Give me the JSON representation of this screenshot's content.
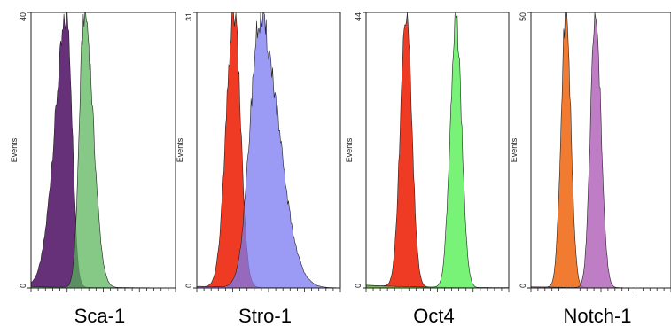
{
  "chart_data": [
    {
      "type": "area",
      "xlabel": "Sca-1",
      "ylabel": "Events",
      "ymax_label": "40",
      "ymin_label": "0",
      "ylim": [
        0,
        40
      ],
      "xlim": [
        0,
        1
      ],
      "series": [
        {
          "color": "#5a1f6e",
          "opacity": 0.92,
          "peak": {
            "x": 0.25,
            "y": 39,
            "sl": 0.085,
            "sr": 0.035,
            "tail": 0.012
          }
        },
        {
          "color": "#58b358",
          "opacity": 0.72,
          "peak": {
            "x": 0.37,
            "y": 40,
            "sl": 0.035,
            "sr": 0.06,
            "tail": 0.01
          }
        }
      ]
    },
    {
      "type": "area",
      "xlabel": "Stro-1",
      "ylabel": "Events",
      "ymax_label": "31",
      "ymin_label": "0",
      "ylim": [
        0,
        31
      ],
      "xlim": [
        0,
        1
      ],
      "series": [
        {
          "color": "#ee2a10",
          "opacity": 0.92,
          "peak": {
            "x": 0.26,
            "y": 31,
            "sl": 0.055,
            "sr": 0.045,
            "tail": 0.01
          }
        },
        {
          "color": "#7a7af2",
          "opacity": 0.75,
          "peak": {
            "x": 0.44,
            "y": 30,
            "sl": 0.07,
            "sr": 0.13,
            "tail": 0.012
          }
        }
      ]
    },
    {
      "type": "area",
      "xlabel": "Oct4",
      "ylabel": "Events",
      "ymax_label": "44",
      "ymin_label": "0",
      "ylim": [
        0,
        44
      ],
      "xlim": [
        0,
        1
      ],
      "series": [
        {
          "color": "#ee2a10",
          "opacity": 0.92,
          "peak": {
            "x": 0.28,
            "y": 44,
            "sl": 0.04,
            "sr": 0.04,
            "tail": 0.02
          }
        },
        {
          "color": "#44ee44",
          "opacity": 0.72,
          "peak": {
            "x": 0.63,
            "y": 43,
            "sl": 0.04,
            "sr": 0.04,
            "tail": 0.02
          }
        }
      ]
    },
    {
      "type": "area",
      "xlabel": "Notch-1",
      "ylabel": "Events",
      "ymax_label": "50",
      "ymin_label": "0",
      "ylim": [
        0,
        50
      ],
      "xlim": [
        0,
        1
      ],
      "series": [
        {
          "color": "#f07020",
          "opacity": 0.92,
          "peak": {
            "x": 0.25,
            "y": 50,
            "sl": 0.035,
            "sr": 0.035,
            "tail": 0.008
          }
        },
        {
          "color": "#b060b8",
          "opacity": 0.82,
          "peak": {
            "x": 0.46,
            "y": 50,
            "sl": 0.035,
            "sr": 0.04,
            "tail": 0.008
          }
        }
      ]
    }
  ]
}
